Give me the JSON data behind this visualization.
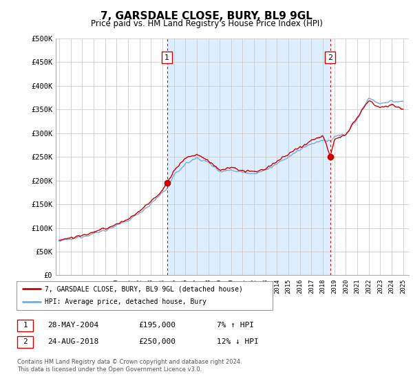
{
  "title": "7, GARSDALE CLOSE, BURY, BL9 9GL",
  "subtitle": "Price paid vs. HM Land Registry's House Price Index (HPI)",
  "ylabel_ticks": [
    "£0",
    "£50K",
    "£100K",
    "£150K",
    "£200K",
    "£250K",
    "£300K",
    "£350K",
    "£400K",
    "£450K",
    "£500K"
  ],
  "ytick_values": [
    0,
    50000,
    100000,
    150000,
    200000,
    250000,
    300000,
    350000,
    400000,
    450000,
    500000
  ],
  "ylim": [
    0,
    500000
  ],
  "xlim_start": 1994.7,
  "xlim_end": 2025.5,
  "transaction1": {
    "date": 2004.41,
    "price": 195000,
    "label": "1",
    "date_str": "28-MAY-2004"
  },
  "transaction2": {
    "date": 2018.65,
    "price": 250000,
    "label": "2",
    "date_str": "24-AUG-2018"
  },
  "legend_line1": "7, GARSDALE CLOSE, BURY, BL9 9GL (detached house)",
  "legend_line2": "HPI: Average price, detached house, Bury",
  "footer": "Contains HM Land Registry data © Crown copyright and database right 2024.\nThis data is licensed under the Open Government Licence v3.0.",
  "line_color_red": "#cc0000",
  "line_color_blue": "#7aaadd",
  "shade_color": "#ddeeff",
  "vline_color": "#cc0000",
  "background_color": "#ffffff",
  "grid_color": "#cccccc",
  "table_row1": [
    "1",
    "28-MAY-2004",
    "£195,000",
    "7% ↑ HPI"
  ],
  "table_row2": [
    "2",
    "24-AUG-2018",
    "£250,000",
    "12% ↓ HPI"
  ]
}
